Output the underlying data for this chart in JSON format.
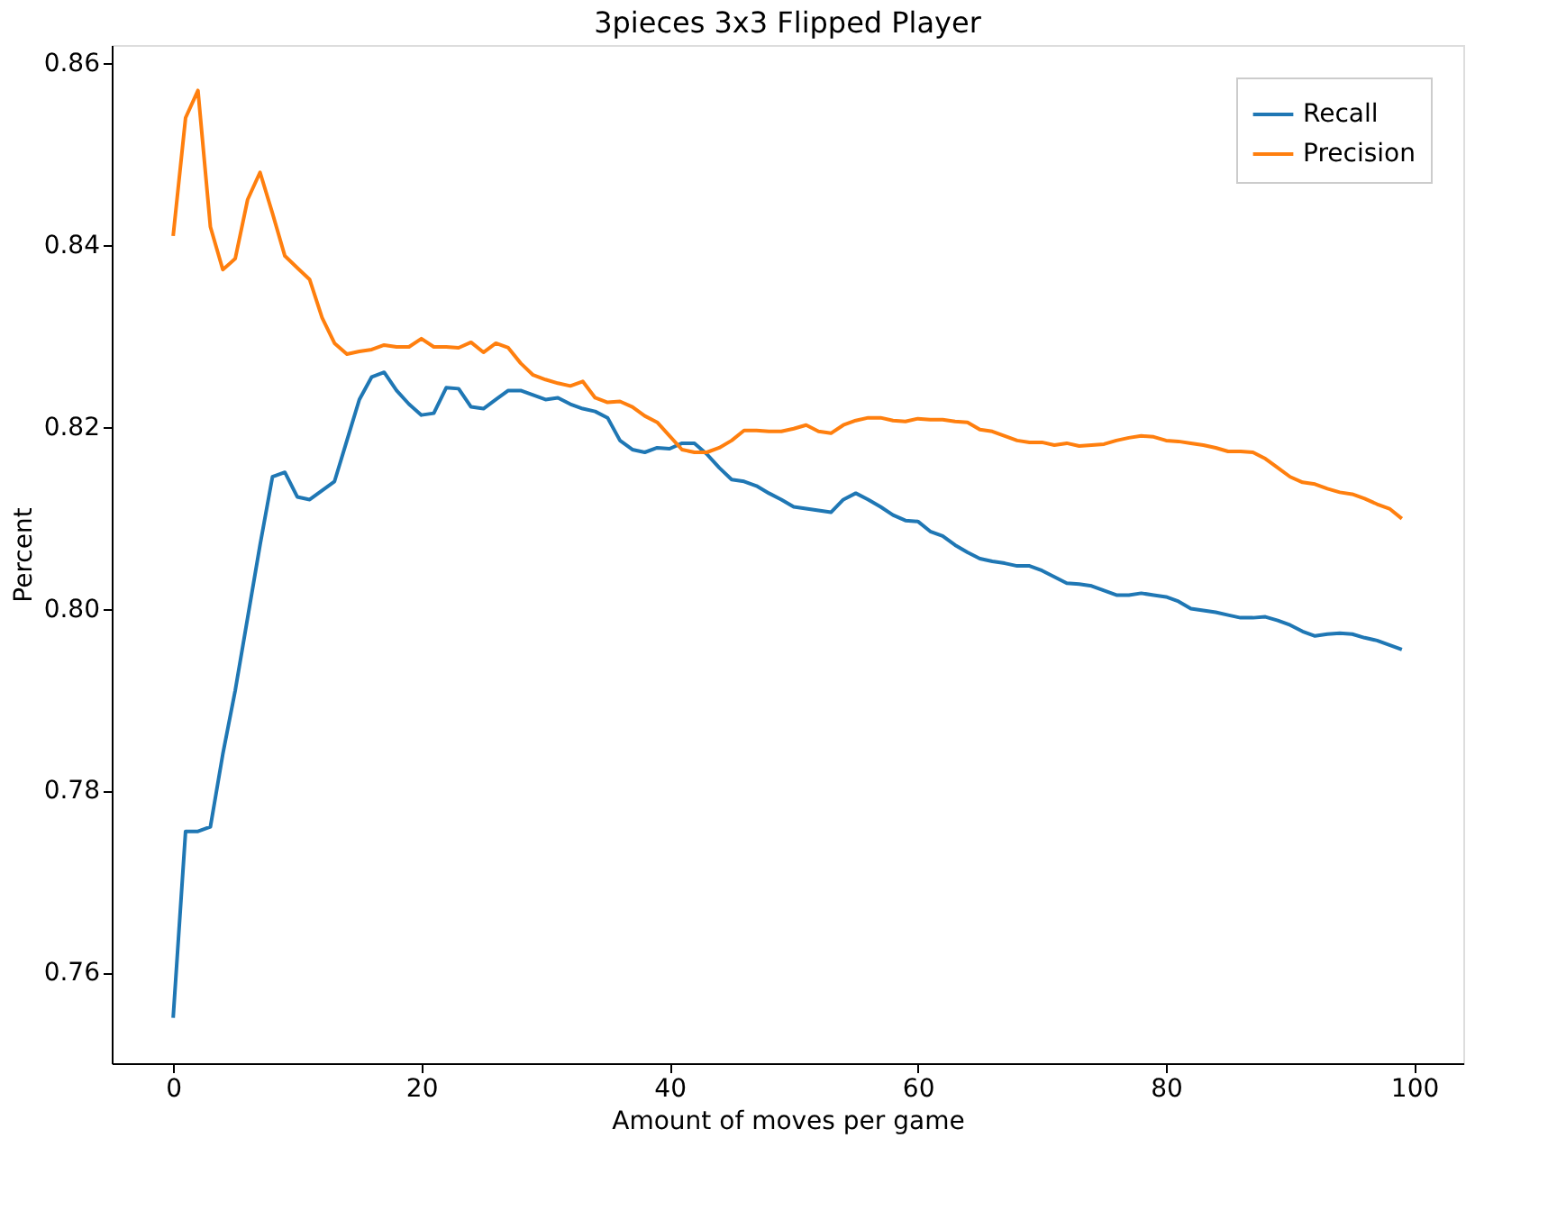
{
  "chart_data": {
    "type": "line",
    "title": "3pieces 3x3 Flipped Player",
    "xlabel": "Amount of moves per game",
    "ylabel": "Percent",
    "x": [
      0,
      1,
      2,
      3,
      4,
      5,
      6,
      7,
      8,
      9,
      10,
      11,
      12,
      13,
      14,
      15,
      16,
      17,
      18,
      19,
      20,
      21,
      22,
      23,
      24,
      25,
      26,
      27,
      28,
      29,
      30,
      31,
      32,
      33,
      34,
      35,
      36,
      37,
      38,
      39,
      40,
      41,
      42,
      43,
      44,
      45,
      46,
      47,
      48,
      49,
      50,
      51,
      52,
      53,
      54,
      55,
      56,
      57,
      58,
      59,
      60,
      61,
      62,
      63,
      64,
      65,
      66,
      67,
      68,
      69,
      70,
      71,
      72,
      73,
      74,
      75,
      76,
      77,
      78,
      79,
      80,
      81,
      82,
      83,
      84,
      85,
      86,
      87,
      88,
      89,
      90,
      91,
      92,
      93,
      94,
      95,
      96,
      97,
      98,
      99
    ],
    "series": [
      {
        "name": "Recall",
        "color": "#1f77b4",
        "values": [
          0.755,
          0.7755,
          0.7755,
          0.776,
          0.784,
          0.791,
          0.799,
          0.807,
          0.8145,
          0.815,
          0.8123,
          0.812,
          0.813,
          0.814,
          0.8185,
          0.823,
          0.8255,
          0.826,
          0.824,
          0.8225,
          0.8213,
          0.8215,
          0.8243,
          0.8242,
          0.8222,
          0.822,
          0.823,
          0.824,
          0.824,
          0.8235,
          0.823,
          0.8232,
          0.8225,
          0.822,
          0.8217,
          0.821,
          0.8185,
          0.8175,
          0.8172,
          0.8177,
          0.8176,
          0.8182,
          0.8182,
          0.817,
          0.8155,
          0.8142,
          0.814,
          0.8135,
          0.8127,
          0.812,
          0.8112,
          0.811,
          0.8108,
          0.8106,
          0.812,
          0.8127,
          0.812,
          0.8112,
          0.8103,
          0.8097,
          0.8096,
          0.8085,
          0.808,
          0.807,
          0.8062,
          0.8055,
          0.8052,
          0.805,
          0.8047,
          0.8047,
          0.8042,
          0.8035,
          0.8028,
          0.8027,
          0.8025,
          0.802,
          0.8015,
          0.8015,
          0.8017,
          0.8015,
          0.8013,
          0.8008,
          0.8,
          0.7998,
          0.7996,
          0.7993,
          0.799,
          0.799,
          0.7991,
          0.7987,
          0.7982,
          0.7975,
          0.797,
          0.7972,
          0.7973,
          0.7972,
          0.7968,
          0.7965,
          0.796,
          0.7955
        ]
      },
      {
        "name": "Precision",
        "color": "#ff7f0e",
        "values": [
          0.841,
          0.854,
          0.857,
          0.842,
          0.8373,
          0.8385,
          0.845,
          0.848,
          0.8435,
          0.8388,
          0.8375,
          0.8362,
          0.832,
          0.8292,
          0.828,
          0.8283,
          0.8285,
          0.829,
          0.8288,
          0.8288,
          0.8297,
          0.8288,
          0.8288,
          0.8287,
          0.8293,
          0.8282,
          0.8292,
          0.8287,
          0.827,
          0.8257,
          0.8252,
          0.8248,
          0.8245,
          0.825,
          0.8232,
          0.8227,
          0.8228,
          0.8222,
          0.8212,
          0.8205,
          0.819,
          0.8175,
          0.8172,
          0.8172,
          0.8177,
          0.8185,
          0.8196,
          0.8196,
          0.8195,
          0.8195,
          0.8198,
          0.8202,
          0.8195,
          0.8193,
          0.8202,
          0.8207,
          0.821,
          0.821,
          0.8207,
          0.8206,
          0.8209,
          0.8208,
          0.8208,
          0.8206,
          0.8205,
          0.8197,
          0.8195,
          0.819,
          0.8185,
          0.8183,
          0.8183,
          0.818,
          0.8182,
          0.8179,
          0.818,
          0.8181,
          0.8185,
          0.8188,
          0.819,
          0.8189,
          0.8185,
          0.8184,
          0.8182,
          0.818,
          0.8177,
          0.8173,
          0.8173,
          0.8172,
          0.8165,
          0.8155,
          0.8145,
          0.8139,
          0.8137,
          0.8132,
          0.8128,
          0.8126,
          0.8121,
          0.8115,
          0.811,
          0.8099
        ]
      }
    ],
    "xlim": [
      -4.95,
      103.95
    ],
    "xticks": [
      0,
      20,
      40,
      60,
      80,
      100
    ],
    "ylim": [
      0.75,
      0.862
    ],
    "yticks": [
      {
        "value": 0.76,
        "label": "0.76"
      },
      {
        "value": 0.78,
        "label": "0.78"
      },
      {
        "value": 0.8,
        "label": "0.80"
      },
      {
        "value": 0.82,
        "label": "0.82"
      },
      {
        "value": 0.84,
        "label": "0.84"
      },
      {
        "value": 0.86,
        "label": "0.86"
      }
    ],
    "legend": "top right",
    "grid": false,
    "marker": "none",
    "line_style": "solid"
  }
}
